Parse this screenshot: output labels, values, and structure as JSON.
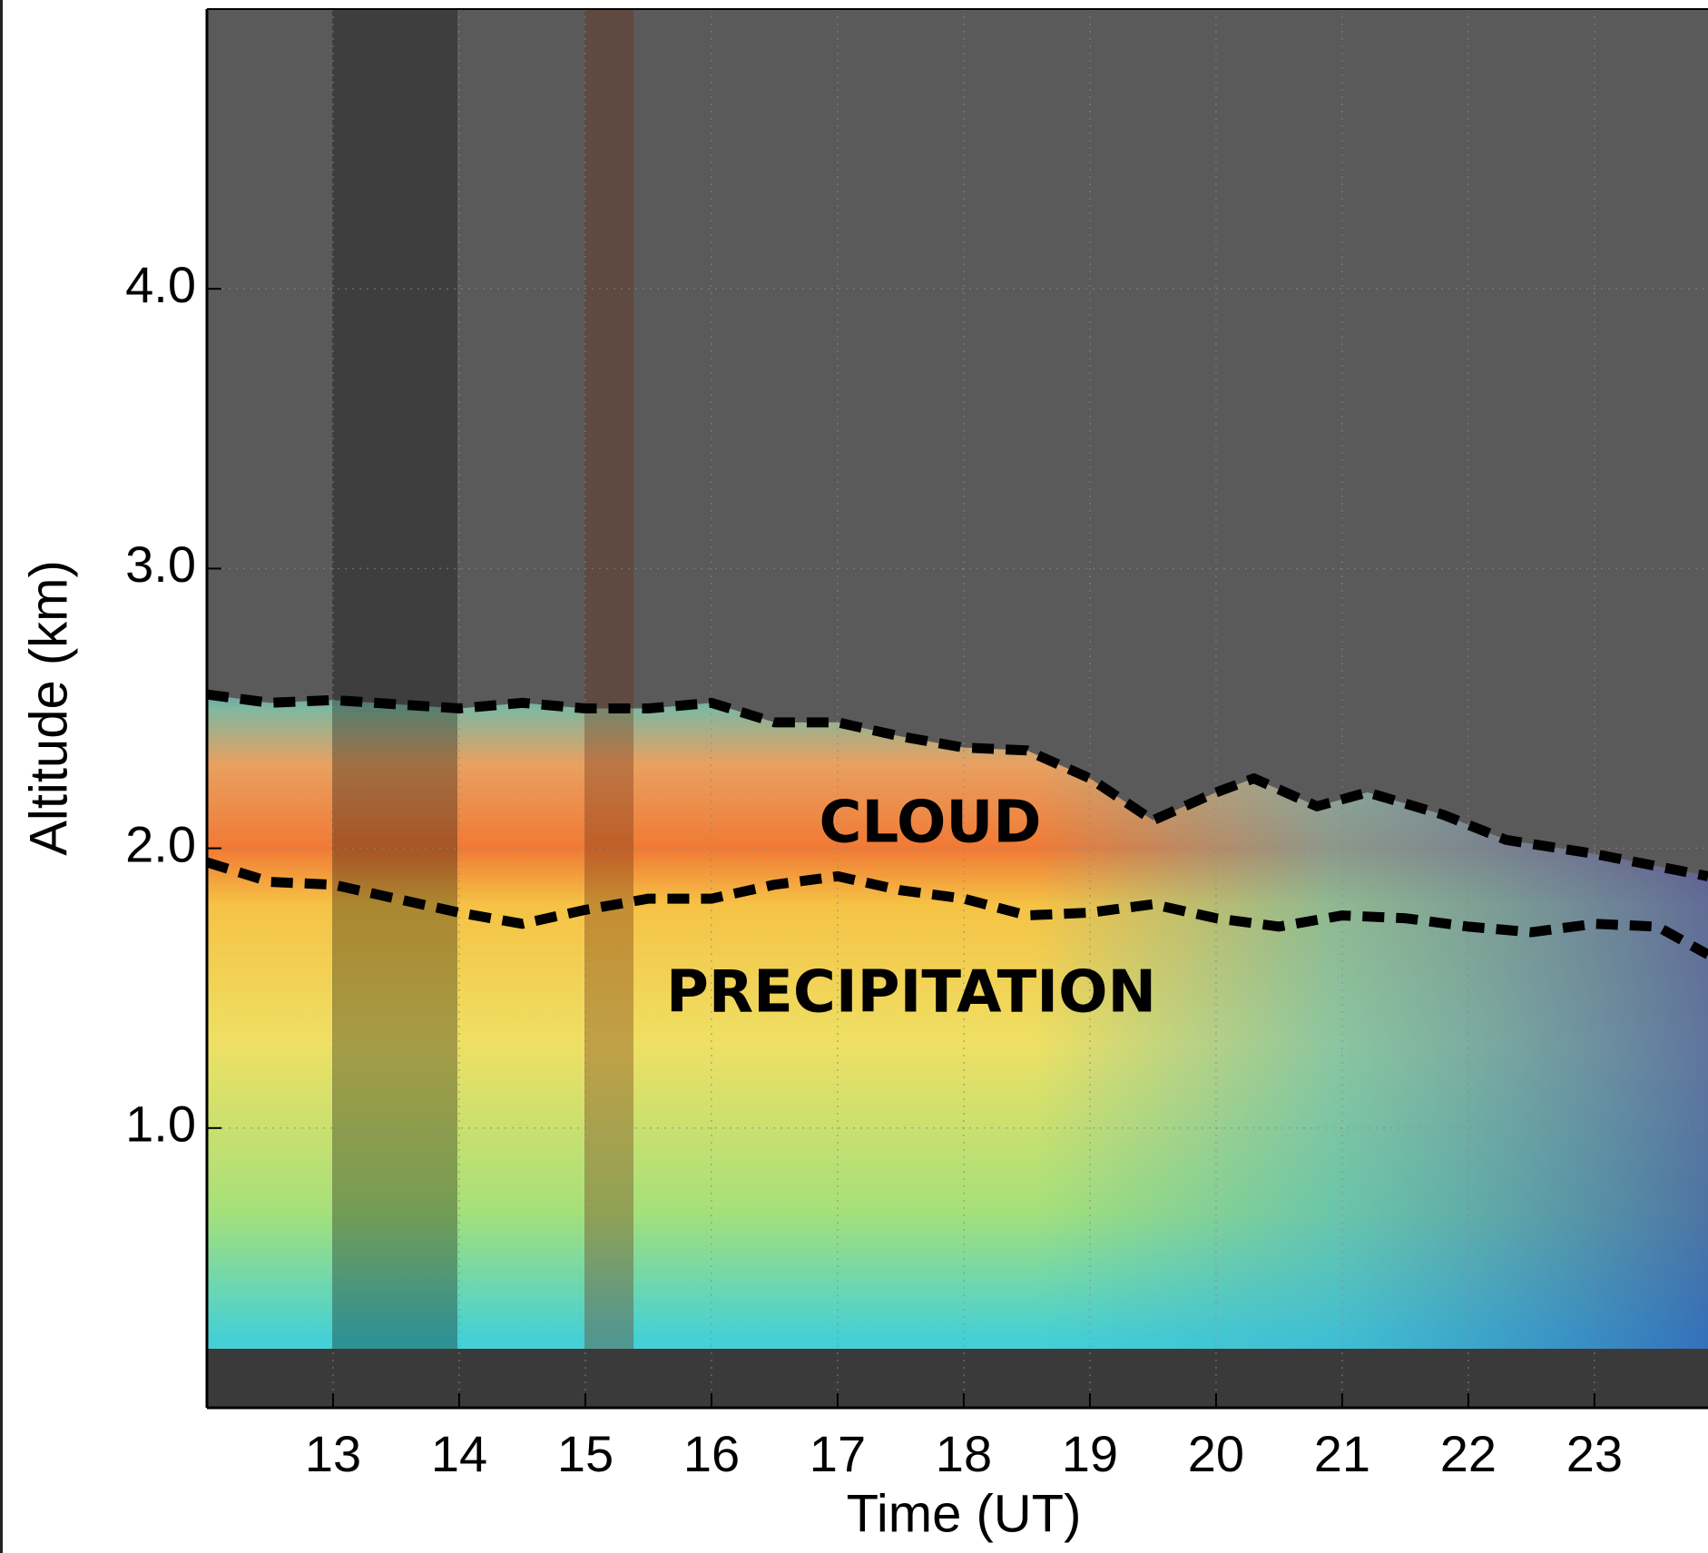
{
  "chart_data": {
    "type": "line",
    "xlabel": "Time (UT)",
    "ylabel": "Altitude (km)",
    "xlim": [
      12,
      23.9
    ],
    "ylim": [
      0,
      5
    ],
    "xticks": [
      13,
      14,
      15,
      16,
      17,
      18,
      19,
      20,
      21,
      22,
      23
    ],
    "yticks": [
      {
        "value": 1,
        "label": "1.0"
      },
      {
        "value": 2,
        "label": "2.0"
      },
      {
        "value": 3,
        "label": "3.0"
      },
      {
        "value": 4,
        "label": "4.0"
      }
    ],
    "grid": true,
    "annotations": [
      "CLOUD",
      "PRECIPITATION"
    ],
    "series": [
      {
        "color": "#000000",
        "x": [
          12,
          12.5,
          13,
          14,
          14.5,
          15,
          15.5,
          16,
          16.5,
          17,
          17.5,
          18,
          18.5,
          19,
          19.5,
          20,
          20.3,
          20.8,
          21.2,
          21.8,
          22.3,
          23,
          23.9
        ],
        "values": [
          2.55,
          2.52,
          2.53,
          2.5,
          2.52,
          2.5,
          2.5,
          2.52,
          2.45,
          2.45,
          2.4,
          2.36,
          2.35,
          2.25,
          2.1,
          2.2,
          2.25,
          2.15,
          2.2,
          2.12,
          2.03,
          1.98,
          1.9
        ]
      },
      {
        "color": "#000000",
        "x": [
          12,
          12.5,
          13,
          13.5,
          14,
          14.5,
          15,
          15.5,
          16,
          16.5,
          17,
          17.5,
          18,
          18.5,
          19,
          19.5,
          20,
          20.5,
          21,
          21.5,
          22,
          22.5,
          23,
          23.5,
          23.9
        ],
        "values": [
          1.95,
          1.88,
          1.87,
          1.82,
          1.77,
          1.73,
          1.78,
          1.82,
          1.82,
          1.87,
          1.9,
          1.85,
          1.82,
          1.76,
          1.77,
          1.8,
          1.75,
          1.72,
          1.76,
          1.75,
          1.72,
          1.7,
          1.73,
          1.72,
          1.62
        ]
      }
    ]
  }
}
